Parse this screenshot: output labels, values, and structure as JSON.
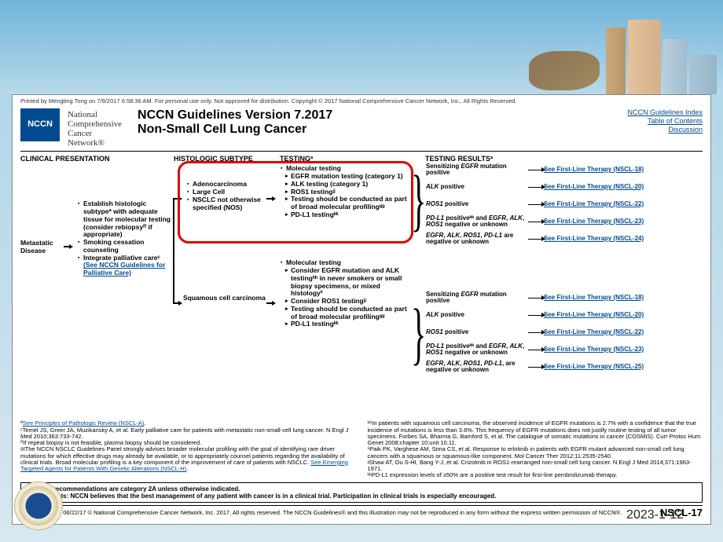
{
  "copyright_top": "Printed by Mengting Tong on 7/9/2017 6:58:36 AM. For personal use only. Not approved for distribution. Copyright © 2017 National Comprehensive Cancer Network, Inc., All Rights Reserved.",
  "logo": "NCCN",
  "org": [
    "National",
    "Comprehensive",
    "Cancer",
    "Network®"
  ],
  "title_line1": "NCCN Guidelines Version 7.2017",
  "title_line2": "Non-Small Cell Lung Cancer",
  "toplinks": [
    "NCCN Guidelines Index",
    "Table of Contents",
    "Discussion"
  ],
  "cols": [
    "CLINICAL PRESENTATION",
    "HISTOLOGIC SUBTYPE",
    "TESTINGª",
    "TESTING RESULTSª"
  ],
  "md": "Metastatic Disease",
  "clinical": [
    "Establish histologic subtypeª with adequate tissue for molecular testing (consider rebiopsyᶠᶠ if appropriate)",
    "Smoking cessation counseling",
    "Integrate palliative careᶜ "
  ],
  "clinical_link": "(See NCCN Guidelines for Palliative Care)",
  "hist1": [
    "Adenocarcinoma",
    "Large Cell",
    "NSCLC not otherwise specified (NOS)"
  ],
  "hist2": "Squamous cell carcinoma",
  "test1_head": "Molecular testing",
  "test1": [
    "EGFR mutation testing (category 1)",
    "ALK testing (category 1)",
    "ROS1 testingʲʲ",
    "Testing should be conducted as part of broad molecular profilingᵍᵍ",
    "PD-L1 testingᵏᵏ"
  ],
  "test2_items": [
    "Molecular testing",
    "Consider EGFR mutation and ALK testingʰʰ in never smokers or small biopsy specimens, or mixed histologyⁱⁱ",
    "Consider ROS1 testingʲʲ",
    "Testing should be conducted as part of broad molecular profilingᵍᵍ",
    "PD-L1 testingᵏᵏ"
  ],
  "results": [
    {
      "label": "Sensitizing EGFR mutation positive",
      "link": "See First-Line Therapy (NSCL-18)"
    },
    {
      "label": "ALK positive",
      "link": "See First-Line Therapy (NSCL-20)"
    },
    {
      "label": "ROS1 positive",
      "link": "See First-Line Therapy (NSCL-22)"
    },
    {
      "label": "PD-L1 positiveᵏᵏ and EGFR, ALK, ROS1 negative or unknown",
      "link": "See First-Line Therapy (NSCL-23)"
    },
    {
      "label": "EGFR, ALK, ROS1, PD-L1 are negative or unknown",
      "link": "See First-Line Therapy (NSCL-24)"
    }
  ],
  "results2": [
    {
      "label": "Sensitizing EGFR mutation positive",
      "link": "See First-Line Therapy (NSCL-18)"
    },
    {
      "label": "ALK positive",
      "link": "See First-Line Therapy (NSCL-20)"
    },
    {
      "label": "ROS1 positive",
      "link": "See First-Line Therapy (NSCL-22)"
    },
    {
      "label": "PD-L1 positiveᵏᵏ and EGFR, ALK, ROS1 negative or unknown",
      "link": "See First-Line Therapy (NSCL-23)"
    },
    {
      "label": "EGFR, ALK, ROS1, PD-L1, are negative or unknown",
      "link": "See First-Line Therapy (NSCL-25)"
    }
  ],
  "fn_left": [
    {
      "pre": "ª",
      "link": "See Principles of Pathologic Review (NSCL-A)",
      "post": "."
    },
    {
      "pre": "ᶜTemel JS, Greer JA, Muzikansky A, et al. Early palliative care for patients with metastatic non-small-cell lung cancer. N Engl J Med 2010;363:733-742."
    },
    {
      "pre": "ᶠᶠIf repeat biopsy is not feasible, plasma biopsy should be considered."
    },
    {
      "pre": "ᵍᵍThe NCCN NSCLC Guidelines Panel strongly advises broader molecular profiling with the goal of identifying rare driver mutations for which effective drugs may already be available, or to appropriately counsel patients regarding the availability of clinical trials. Broad molecular profiling is a key component of the improvement of care of patients with NSCLC. ",
      "link": "See Emerging Targeted Agents for Patients With Genetic Alterations (NSCL-H)",
      "post": "."
    }
  ],
  "fn_right": [
    "ʰʰIn patients with squamous cell carcinoma, the observed incidence of EGFR mutations is 2.7% with a confidence that the true incidence of mutations is less than 3.6%. This frequency of EGFR mutations does not justify routine testing of all tumor specimens. Forbes SA, Bharma G, Bamford S, et al. The catalogue of somatic mutations in cancer (COSMIS). Curr Protoc Hum Genet 2008;chapter 10:unit 10.11.",
    "ⁱⁱPaik PK, Varghese AM, Sima CS, et al. Response to erlotinib in patients with EGFR mutant advanced non-small cell lung cancers with a squamous or squamous-like component. Mol Cancer Ther 2012;11:2535-2540.",
    "ʲʲShaw AT, Ou S-HI, Bang Y-J, et al. Crizotinib in ROS1-rearranged non-small cell lung cancer. N Engl J Med 2014;371:1963-1971.",
    "ᵏᵏPD-L1 expression levels of ≥50% are a positive test result for first-line pembrolizumab therapy."
  ],
  "note1": "Note:  All recommendations are category 2A unless otherwise indicated.",
  "note2": "Clinical Trials: NCCN believes that the best management of any patient with cancer is in a clinical trial.  Participation in clinical trials is especially encouraged.",
  "version_line": "Version 7.2017, 06/22/17 © National Comprehensive Cancer Network, Inc. 2017, All rights reserved. The NCCN Guidelines® and this illustration may not be reproduced in any form without the express written permission of NCCN®.",
  "page_code": "NSCL-17",
  "date": "2023-1-12",
  "colors": {
    "link": "#004a8f",
    "red": "#e30000"
  }
}
